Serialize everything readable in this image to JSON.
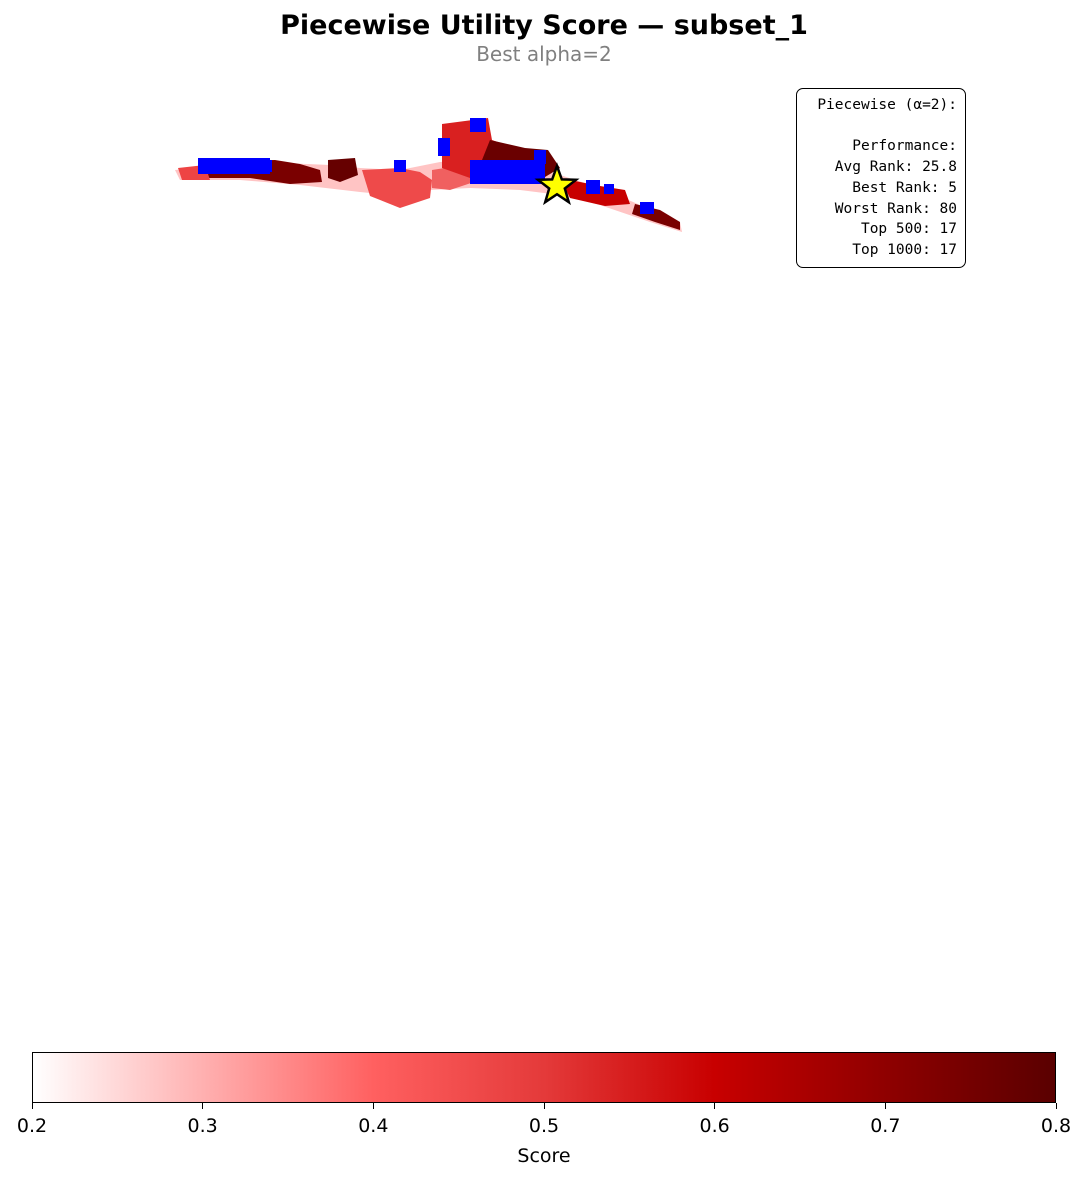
{
  "title": "Piecewise Utility Score — subset_1",
  "subtitle": "Best alpha=2",
  "stats_box": {
    "lines": [
      "Piecewise (α=2):",
      "",
      "Performance:",
      "Avg Rank: 25.8",
      "Best Rank: 5",
      "Worst Rank: 80",
      "Top 500: 17",
      "Top 1000: 17"
    ]
  },
  "colorbar": {
    "label": "Score",
    "range": [
      0.2,
      0.8
    ],
    "ticks": [
      "0.2",
      "0.3",
      "0.4",
      "0.5",
      "0.6",
      "0.7",
      "0.8"
    ],
    "colors": [
      "#ffffff",
      "#ffb0b0",
      "#ff6060",
      "#e43a3a",
      "#c80000",
      "#8f0000",
      "#5a0000"
    ]
  },
  "map": {
    "highlight_marker": "star-icon",
    "highlight_color": "#ffff00",
    "selected_color": "#0000ff"
  }
}
